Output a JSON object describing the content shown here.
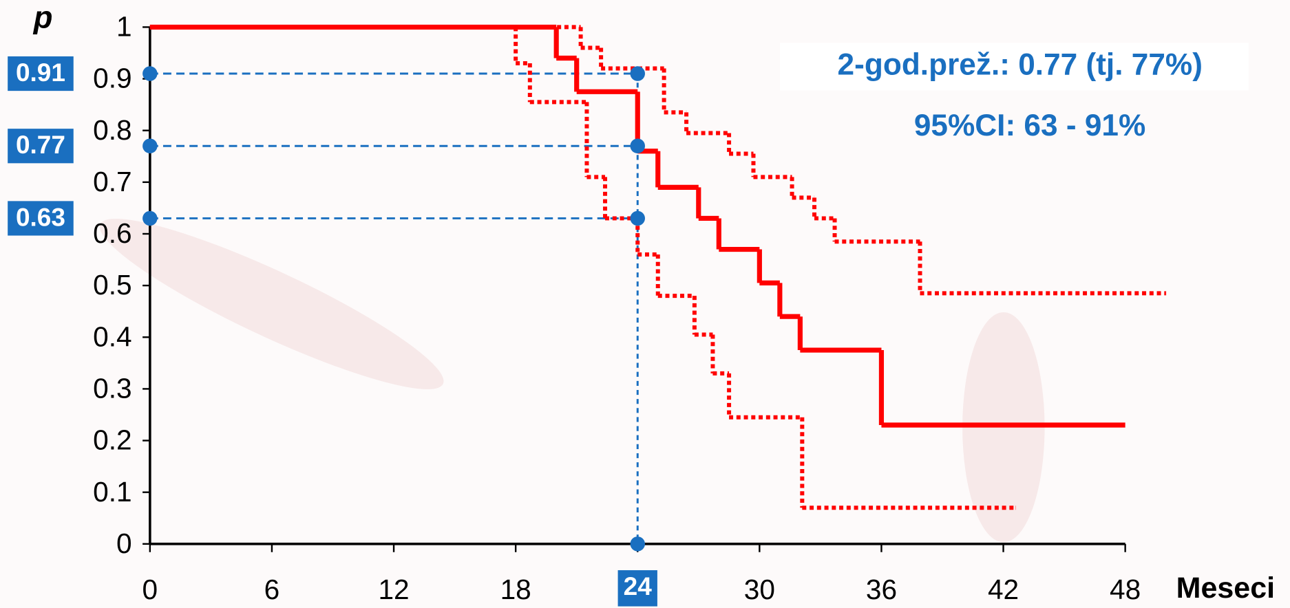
{
  "chart_data": {
    "type": "step",
    "y_label": "p",
    "x_label": "Meseci",
    "annotations": [
      "2-god.prež.: 0.77 (tj. 77%)",
      "95%CI: 63 - 91%"
    ],
    "xlim": [
      0,
      48
    ],
    "ylim": [
      0,
      1
    ],
    "xticks": [
      0,
      6,
      12,
      18,
      24,
      30,
      36,
      42,
      48
    ],
    "yticks": [
      0,
      0.1,
      0.2,
      0.3,
      0.4,
      0.5,
      0.6,
      0.7,
      0.8,
      0.9,
      1
    ],
    "reference_x": 24,
    "reference_y": [
      0.91,
      0.77,
      0.63
    ],
    "reference_color": "#1a6fc0",
    "series": [
      {
        "color": "#ff0000",
        "style": "solid",
        "x": [
          0,
          20,
          21,
          24,
          25,
          27,
          28,
          30,
          31,
          32,
          36,
          48
        ],
        "values": [
          1,
          0.94,
          0.875,
          0.76,
          0.69,
          0.63,
          0.57,
          0.505,
          0.44,
          0.375,
          0.23,
          0.23
        ]
      },
      {
        "color": "#ff0000",
        "style": "dotted",
        "x": [
          0,
          18,
          18.7,
          21.5,
          22.4,
          24,
          25,
          26.8,
          27.7,
          28.5,
          32.1,
          42.6
        ],
        "values": [
          1,
          0.93,
          0.855,
          0.71,
          0.63,
          0.56,
          0.48,
          0.405,
          0.33,
          0.245,
          0.07,
          0.07
        ]
      },
      {
        "color": "#ff0000",
        "style": "dotted",
        "x": [
          0,
          21.2,
          22.2,
          25.3,
          26.4,
          28.5,
          29.7,
          31.6,
          32.7,
          33.7,
          37.9,
          50
        ],
        "values": [
          1,
          0.96,
          0.92,
          0.835,
          0.795,
          0.755,
          0.71,
          0.67,
          0.63,
          0.585,
          0.485,
          0.485
        ]
      }
    ]
  }
}
